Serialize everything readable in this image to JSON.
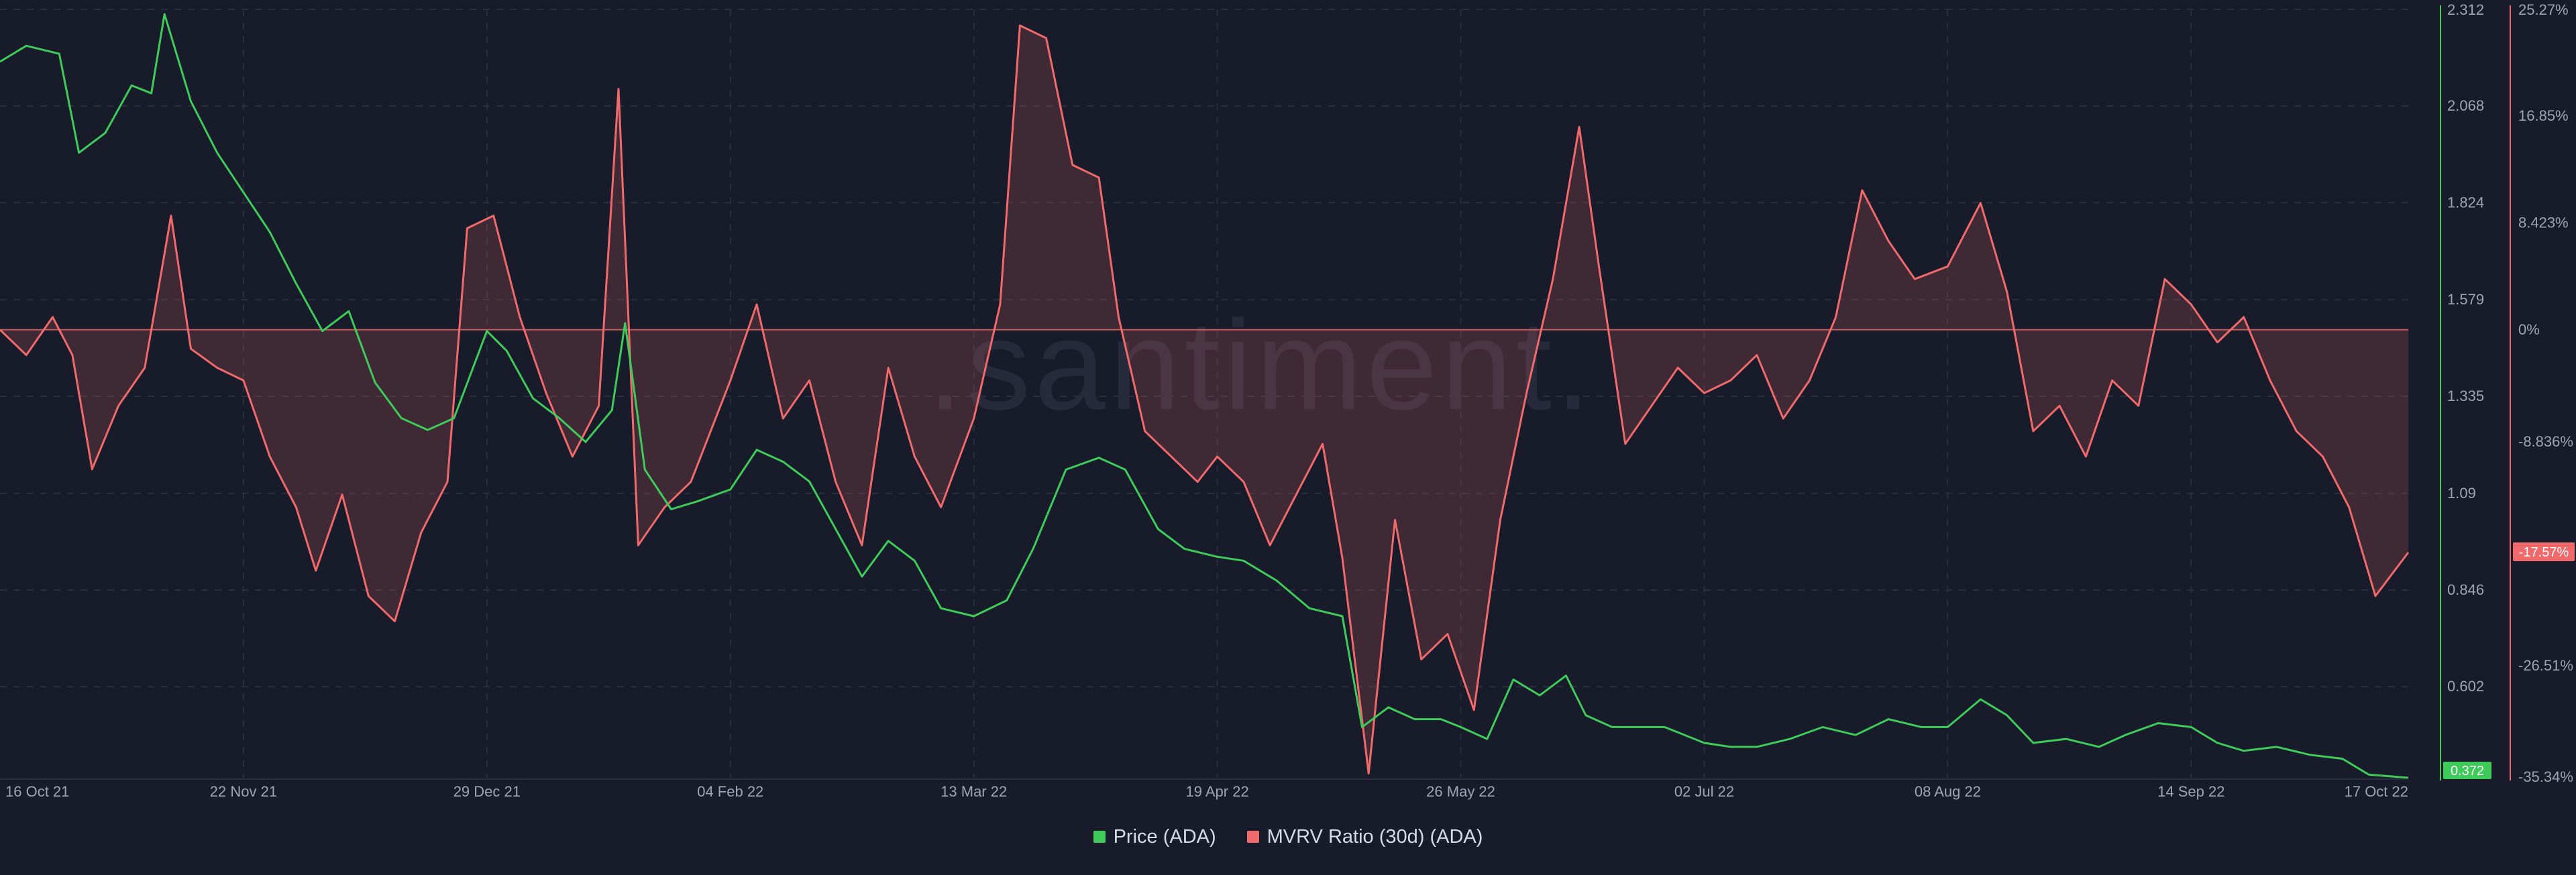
{
  "watermark": ".santiment.",
  "colors": {
    "background": "#181b2a",
    "price": "#3fcb5a",
    "mvrv": "#f0696b",
    "grid": "#2a2e40",
    "axis_text": "#9ea3b5"
  },
  "legend": {
    "price_label": "Price (ADA)",
    "mvrv_label": "MVRV Ratio (30d) (ADA)"
  },
  "badges": {
    "price_last": "0.372",
    "mvrv_last": "-17.57%"
  },
  "chart_data": {
    "type": "line",
    "title": "",
    "legend_position": "bottom-center",
    "grid": true,
    "x_tick_labels": [
      "16 Oct 21",
      "22 Nov 21",
      "29 Dec 21",
      "04 Feb 22",
      "13 Mar 22",
      "19 Apr 22",
      "26 May 22",
      "02 Jul 22",
      "08 Aug 22",
      "14 Sep 22",
      "17 Oct 22"
    ],
    "y_left": {
      "label": "",
      "ticks": [
        "2.312",
        "2.068",
        "1.824",
        "1.579",
        "1.335",
        "1.09",
        "0.846",
        "0.602"
      ],
      "range": [
        0.372,
        2.312
      ]
    },
    "y_right": {
      "label": "",
      "ticks": [
        "25.27%",
        "16.85%",
        "8.423%",
        "0%",
        "-8.836%",
        "-17.57%",
        "-26.51%",
        "-35.34%"
      ],
      "range": [
        -35.34,
        25.27
      ]
    },
    "series": [
      {
        "name": "Price (ADA)",
        "axis": "left",
        "unit": "USD",
        "points": [
          [
            "2021-10-16",
            2.18
          ],
          [
            "2021-10-20",
            2.22
          ],
          [
            "2021-10-25",
            2.2
          ],
          [
            "2021-10-28",
            1.95
          ],
          [
            "2021-11-01",
            2.0
          ],
          [
            "2021-11-05",
            2.12
          ],
          [
            "2021-11-08",
            2.1
          ],
          [
            "2021-11-10",
            2.3
          ],
          [
            "2021-11-14",
            2.08
          ],
          [
            "2021-11-18",
            1.95
          ],
          [
            "2021-11-22",
            1.85
          ],
          [
            "2021-11-26",
            1.75
          ],
          [
            "2021-11-30",
            1.62
          ],
          [
            "2021-12-04",
            1.5
          ],
          [
            "2021-12-08",
            1.55
          ],
          [
            "2021-12-12",
            1.37
          ],
          [
            "2021-12-16",
            1.28
          ],
          [
            "2021-12-20",
            1.25
          ],
          [
            "2021-12-24",
            1.28
          ],
          [
            "2021-12-29",
            1.5
          ],
          [
            "2022-01-01",
            1.45
          ],
          [
            "2022-01-05",
            1.33
          ],
          [
            "2022-01-09",
            1.28
          ],
          [
            "2022-01-13",
            1.22
          ],
          [
            "2022-01-17",
            1.3
          ],
          [
            "2022-01-19",
            1.52
          ],
          [
            "2022-01-22",
            1.15
          ],
          [
            "2022-01-26",
            1.05
          ],
          [
            "2022-01-30",
            1.07
          ],
          [
            "2022-02-04",
            1.1
          ],
          [
            "2022-02-08",
            1.2
          ],
          [
            "2022-02-12",
            1.17
          ],
          [
            "2022-02-16",
            1.12
          ],
          [
            "2022-02-20",
            1.0
          ],
          [
            "2022-02-24",
            0.88
          ],
          [
            "2022-02-28",
            0.97
          ],
          [
            "2022-03-04",
            0.92
          ],
          [
            "2022-03-08",
            0.8
          ],
          [
            "2022-03-13",
            0.78
          ],
          [
            "2022-03-18",
            0.82
          ],
          [
            "2022-03-22",
            0.95
          ],
          [
            "2022-03-27",
            1.15
          ],
          [
            "2022-04-01",
            1.18
          ],
          [
            "2022-04-05",
            1.15
          ],
          [
            "2022-04-10",
            1.0
          ],
          [
            "2022-04-14",
            0.95
          ],
          [
            "2022-04-19",
            0.93
          ],
          [
            "2022-04-23",
            0.92
          ],
          [
            "2022-04-28",
            0.87
          ],
          [
            "2022-05-03",
            0.8
          ],
          [
            "2022-05-08",
            0.78
          ],
          [
            "2022-05-11",
            0.5
          ],
          [
            "2022-05-15",
            0.55
          ],
          [
            "2022-05-19",
            0.52
          ],
          [
            "2022-05-23",
            0.52
          ],
          [
            "2022-05-26",
            0.5
          ],
          [
            "2022-05-30",
            0.47
          ],
          [
            "2022-06-03",
            0.62
          ],
          [
            "2022-06-07",
            0.58
          ],
          [
            "2022-06-11",
            0.63
          ],
          [
            "2022-06-14",
            0.53
          ],
          [
            "2022-06-18",
            0.5
          ],
          [
            "2022-06-22",
            0.5
          ],
          [
            "2022-06-26",
            0.5
          ],
          [
            "2022-07-02",
            0.46
          ],
          [
            "2022-07-06",
            0.45
          ],
          [
            "2022-07-10",
            0.45
          ],
          [
            "2022-07-15",
            0.47
          ],
          [
            "2022-07-20",
            0.5
          ],
          [
            "2022-07-25",
            0.48
          ],
          [
            "2022-07-30",
            0.52
          ],
          [
            "2022-08-04",
            0.5
          ],
          [
            "2022-08-08",
            0.5
          ],
          [
            "2022-08-13",
            0.57
          ],
          [
            "2022-08-17",
            0.53
          ],
          [
            "2022-08-21",
            0.46
          ],
          [
            "2022-08-26",
            0.47
          ],
          [
            "2022-08-31",
            0.45
          ],
          [
            "2022-09-04",
            0.48
          ],
          [
            "2022-09-09",
            0.51
          ],
          [
            "2022-09-14",
            0.5
          ],
          [
            "2022-09-18",
            0.46
          ],
          [
            "2022-09-22",
            0.44
          ],
          [
            "2022-09-27",
            0.45
          ],
          [
            "2022-10-02",
            0.43
          ],
          [
            "2022-10-07",
            0.42
          ],
          [
            "2022-10-11",
            0.38
          ],
          [
            "2022-10-17",
            0.372
          ]
        ]
      },
      {
        "name": "MVRV Ratio (30d) (ADA)",
        "axis": "right",
        "unit": "%",
        "points": [
          [
            "2021-10-16",
            0
          ],
          [
            "2021-10-20",
            -2.0
          ],
          [
            "2021-10-24",
            1.0
          ],
          [
            "2021-10-27",
            -2.0
          ],
          [
            "2021-10-30",
            -11.0
          ],
          [
            "2021-11-03",
            -6.0
          ],
          [
            "2021-11-07",
            -3.0
          ],
          [
            "2021-11-11",
            9.0
          ],
          [
            "2021-11-14",
            -1.5
          ],
          [
            "2021-11-18",
            -3.0
          ],
          [
            "2021-11-22",
            -4.0
          ],
          [
            "2021-11-26",
            -10.0
          ],
          [
            "2021-11-30",
            -14.0
          ],
          [
            "2021-12-03",
            -19.0
          ],
          [
            "2021-12-07",
            -13.0
          ],
          [
            "2021-12-11",
            -21.0
          ],
          [
            "2021-12-15",
            -23.0
          ],
          [
            "2021-12-19",
            -16.0
          ],
          [
            "2021-12-23",
            -12.0
          ],
          [
            "2021-12-26",
            8.0
          ],
          [
            "2021-12-30",
            9.0
          ],
          [
            "2022-01-03",
            1.0
          ],
          [
            "2022-01-07",
            -5.0
          ],
          [
            "2022-01-11",
            -10.0
          ],
          [
            "2022-01-15",
            -6.0
          ],
          [
            "2022-01-18",
            19.0
          ],
          [
            "2022-01-21",
            -17.0
          ],
          [
            "2022-01-25",
            -14.0
          ],
          [
            "2022-01-29",
            -12.0
          ],
          [
            "2022-02-04",
            -4.0
          ],
          [
            "2022-02-08",
            2.0
          ],
          [
            "2022-02-12",
            -7.0
          ],
          [
            "2022-02-16",
            -4.0
          ],
          [
            "2022-02-20",
            -12.0
          ],
          [
            "2022-02-24",
            -17.0
          ],
          [
            "2022-02-28",
            -3.0
          ],
          [
            "2022-03-04",
            -10.0
          ],
          [
            "2022-03-08",
            -14.0
          ],
          [
            "2022-03-13",
            -7.0
          ],
          [
            "2022-03-17",
            2.0
          ],
          [
            "2022-03-20",
            24.0
          ],
          [
            "2022-03-24",
            23.0
          ],
          [
            "2022-03-28",
            13.0
          ],
          [
            "2022-04-01",
            12.0
          ],
          [
            "2022-04-04",
            1.0
          ],
          [
            "2022-04-08",
            -8.0
          ],
          [
            "2022-04-12",
            -10.0
          ],
          [
            "2022-04-16",
            -12.0
          ],
          [
            "2022-04-19",
            -10.0
          ],
          [
            "2022-04-23",
            -12.0
          ],
          [
            "2022-04-27",
            -17.0
          ],
          [
            "2022-05-01",
            -13.0
          ],
          [
            "2022-05-05",
            -9.0
          ],
          [
            "2022-05-08",
            -18.0
          ],
          [
            "2022-05-12",
            -35.0
          ],
          [
            "2022-05-16",
            -15.0
          ],
          [
            "2022-05-20",
            -26.0
          ],
          [
            "2022-05-24",
            -24.0
          ],
          [
            "2022-05-28",
            -30.0
          ],
          [
            "2022-06-01",
            -15.0
          ],
          [
            "2022-06-05",
            -5.0
          ],
          [
            "2022-06-09",
            4.0
          ],
          [
            "2022-06-13",
            16.0
          ],
          [
            "2022-06-16",
            5.0
          ],
          [
            "2022-06-20",
            -9.0
          ],
          [
            "2022-06-24",
            -6.0
          ],
          [
            "2022-06-28",
            -3.0
          ],
          [
            "2022-07-02",
            -5.0
          ],
          [
            "2022-07-06",
            -4.0
          ],
          [
            "2022-07-10",
            -2.0
          ],
          [
            "2022-07-14",
            -7.0
          ],
          [
            "2022-07-18",
            -4.0
          ],
          [
            "2022-07-22",
            1.0
          ],
          [
            "2022-07-26",
            11.0
          ],
          [
            "2022-07-30",
            7.0
          ],
          [
            "2022-08-03",
            4.0
          ],
          [
            "2022-08-08",
            5.0
          ],
          [
            "2022-08-13",
            10.0
          ],
          [
            "2022-08-17",
            3.0
          ],
          [
            "2022-08-21",
            -8.0
          ],
          [
            "2022-08-25",
            -6.0
          ],
          [
            "2022-08-29",
            -10.0
          ],
          [
            "2022-09-02",
            -4.0
          ],
          [
            "2022-09-06",
            -6.0
          ],
          [
            "2022-09-10",
            4.0
          ],
          [
            "2022-09-14",
            2.0
          ],
          [
            "2022-09-18",
            -1.0
          ],
          [
            "2022-09-22",
            1.0
          ],
          [
            "2022-09-26",
            -4.0
          ],
          [
            "2022-09-30",
            -8.0
          ],
          [
            "2022-10-04",
            -10.0
          ],
          [
            "2022-10-08",
            -14.0
          ],
          [
            "2022-10-12",
            -21.0
          ],
          [
            "2022-10-17",
            -17.57
          ]
        ]
      }
    ]
  }
}
